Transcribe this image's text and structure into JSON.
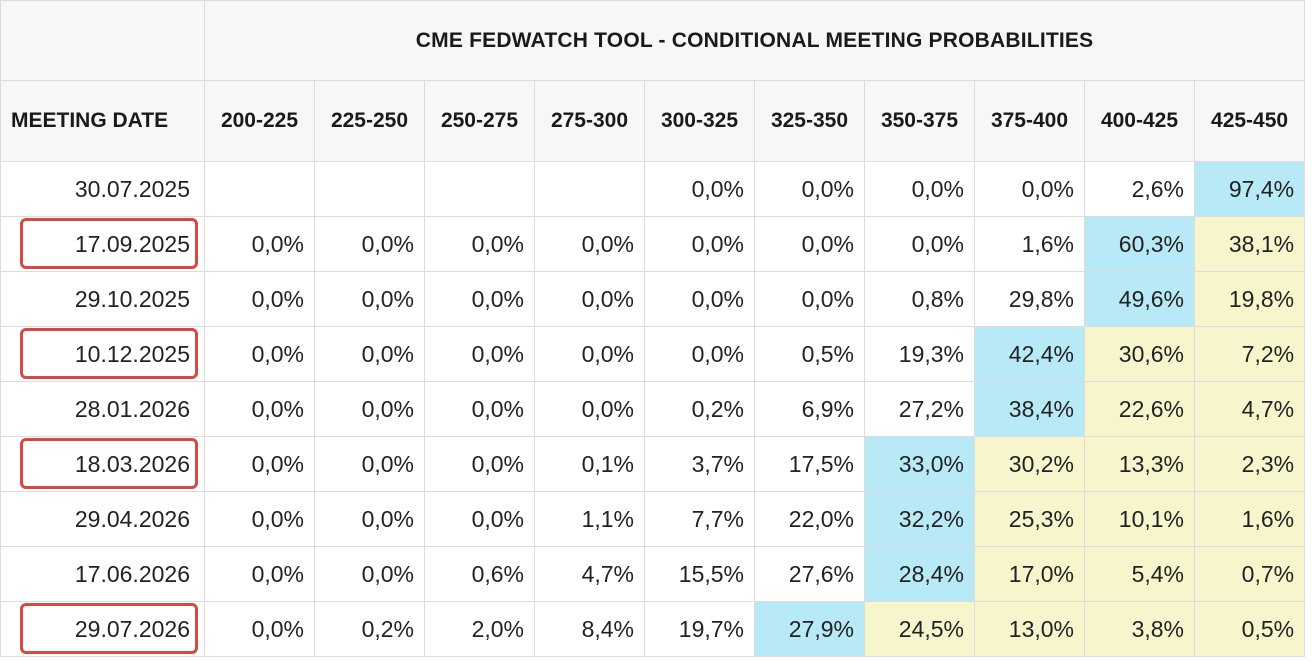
{
  "title": "CME FEDWATCH TOOL - CONDITIONAL MEETING PROBABILITIES",
  "date_header": "MEETING DATE",
  "colors": {
    "blue": "#b7e9f7",
    "yellow": "#f6f5cc",
    "highlight_border": "#d44a43"
  },
  "chart_data": {
    "type": "table",
    "title": "CME FEDWATCH TOOL - CONDITIONAL MEETING PROBABILITIES",
    "columns": [
      "200-225",
      "225-250",
      "250-275",
      "275-300",
      "300-325",
      "325-350",
      "350-375",
      "375-400",
      "400-425",
      "425-450"
    ],
    "rows": [
      {
        "date": "30.07.2025",
        "values": [
          "",
          "",
          "",
          "",
          "0,0%",
          "0,0%",
          "0,0%",
          "0,0%",
          "2,6%",
          "97,4%"
        ],
        "shading": [
          "",
          "",
          "",
          "",
          "",
          "",
          "",
          "",
          "",
          "blue"
        ],
        "highlighted": false
      },
      {
        "date": "17.09.2025",
        "values": [
          "0,0%",
          "0,0%",
          "0,0%",
          "0,0%",
          "0,0%",
          "0,0%",
          "0,0%",
          "1,6%",
          "60,3%",
          "38,1%"
        ],
        "shading": [
          "",
          "",
          "",
          "",
          "",
          "",
          "",
          "",
          "blue",
          "yellow"
        ],
        "highlighted": true
      },
      {
        "date": "29.10.2025",
        "values": [
          "0,0%",
          "0,0%",
          "0,0%",
          "0,0%",
          "0,0%",
          "0,0%",
          "0,8%",
          "29,8%",
          "49,6%",
          "19,8%"
        ],
        "shading": [
          "",
          "",
          "",
          "",
          "",
          "",
          "",
          "",
          "blue",
          "yellow"
        ],
        "highlighted": false
      },
      {
        "date": "10.12.2025",
        "values": [
          "0,0%",
          "0,0%",
          "0,0%",
          "0,0%",
          "0,0%",
          "0,5%",
          "19,3%",
          "42,4%",
          "30,6%",
          "7,2%"
        ],
        "shading": [
          "",
          "",
          "",
          "",
          "",
          "",
          "",
          "blue",
          "yellow",
          "yellow"
        ],
        "highlighted": true
      },
      {
        "date": "28.01.2026",
        "values": [
          "0,0%",
          "0,0%",
          "0,0%",
          "0,0%",
          "0,2%",
          "6,9%",
          "27,2%",
          "38,4%",
          "22,6%",
          "4,7%"
        ],
        "shading": [
          "",
          "",
          "",
          "",
          "",
          "",
          "",
          "blue",
          "yellow",
          "yellow"
        ],
        "highlighted": false
      },
      {
        "date": "18.03.2026",
        "values": [
          "0,0%",
          "0,0%",
          "0,0%",
          "0,1%",
          "3,7%",
          "17,5%",
          "33,0%",
          "30,2%",
          "13,3%",
          "2,3%"
        ],
        "shading": [
          "",
          "",
          "",
          "",
          "",
          "",
          "blue",
          "yellow",
          "yellow",
          "yellow"
        ],
        "highlighted": true
      },
      {
        "date": "29.04.2026",
        "values": [
          "0,0%",
          "0,0%",
          "0,0%",
          "1,1%",
          "7,7%",
          "22,0%",
          "32,2%",
          "25,3%",
          "10,1%",
          "1,6%"
        ],
        "shading": [
          "",
          "",
          "",
          "",
          "",
          "",
          "blue",
          "yellow",
          "yellow",
          "yellow"
        ],
        "highlighted": false
      },
      {
        "date": "17.06.2026",
        "values": [
          "0,0%",
          "0,0%",
          "0,6%",
          "4,7%",
          "15,5%",
          "27,6%",
          "28,4%",
          "17,0%",
          "5,4%",
          "0,7%"
        ],
        "shading": [
          "",
          "",
          "",
          "",
          "",
          "",
          "blue",
          "yellow",
          "yellow",
          "yellow"
        ],
        "highlighted": false
      },
      {
        "date": "29.07.2026",
        "values": [
          "0,0%",
          "0,2%",
          "2,0%",
          "8,4%",
          "19,7%",
          "27,9%",
          "24,5%",
          "13,0%",
          "3,8%",
          "0,5%"
        ],
        "shading": [
          "",
          "",
          "",
          "",
          "",
          "blue",
          "yellow",
          "yellow",
          "yellow",
          "yellow"
        ],
        "highlighted": true
      }
    ]
  }
}
